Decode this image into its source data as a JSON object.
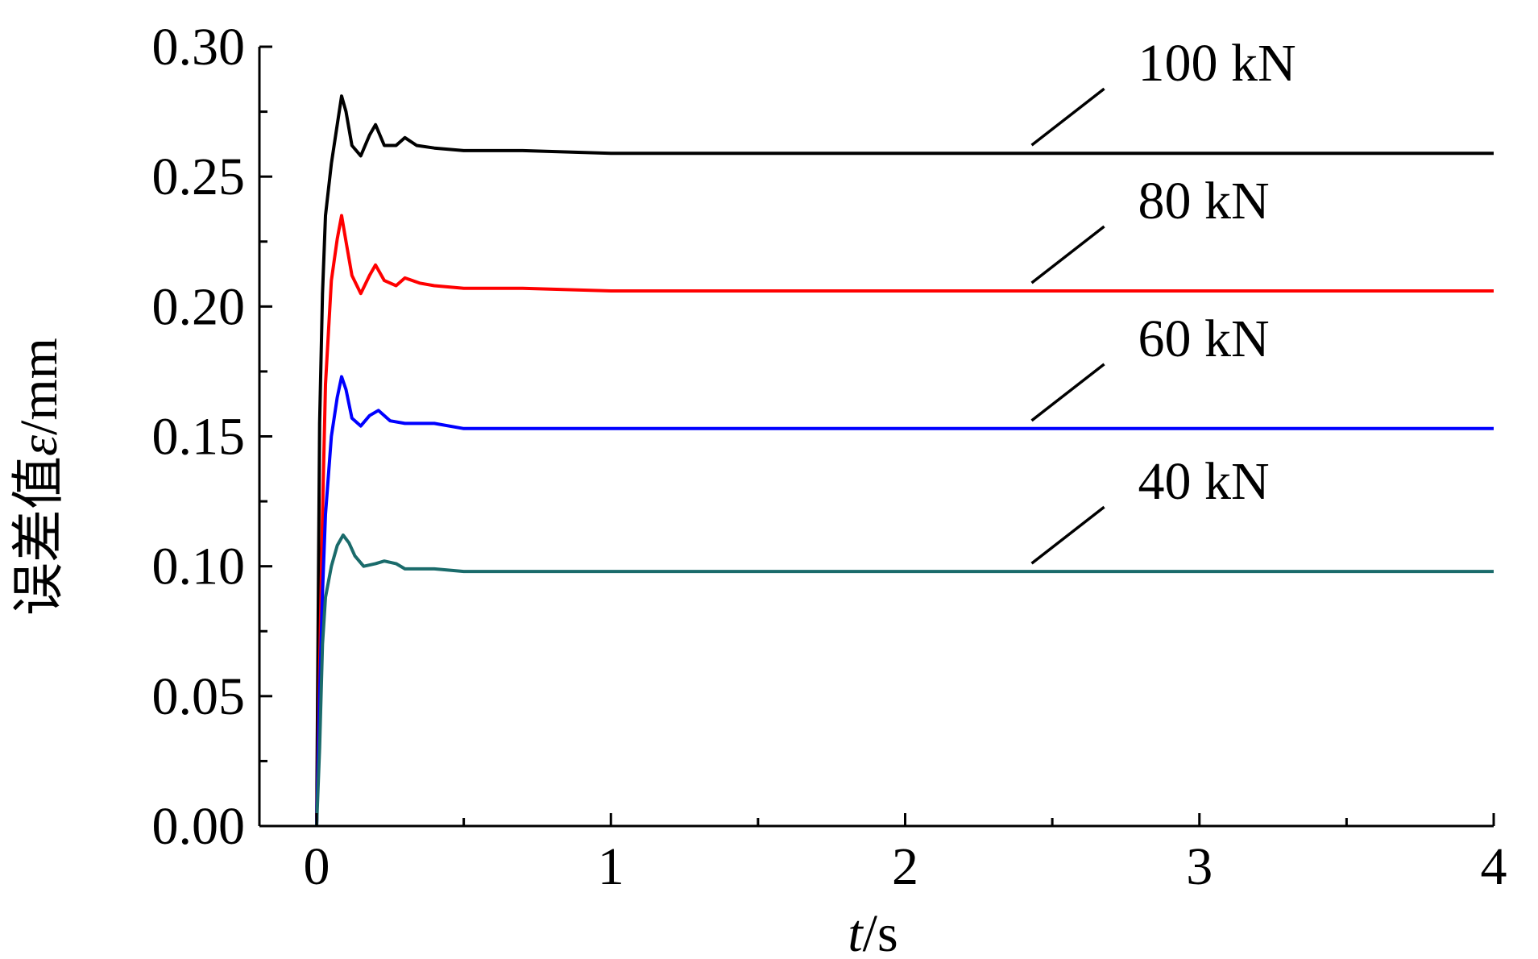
{
  "chart_data": {
    "type": "line",
    "xlabel_italic": "t",
    "xlabel_unit": "/s",
    "ylabel_text": "误差值",
    "ylabel_italic": "ε",
    "ylabel_unit": "/mm",
    "xlim": [
      0,
      4
    ],
    "ylim": [
      0,
      0.3
    ],
    "xticks": [
      "0",
      "1",
      "2",
      "3",
      "4"
    ],
    "yticks": [
      "0.00",
      "0.05",
      "0.10",
      "0.15",
      "0.20",
      "0.25",
      "0.30"
    ],
    "grid": false,
    "series": [
      {
        "name": "100 kN",
        "color": "#000000",
        "x": [
          0,
          0.01,
          0.02,
          0.03,
          0.05,
          0.07,
          0.085,
          0.1,
          0.12,
          0.15,
          0.18,
          0.2,
          0.23,
          0.27,
          0.3,
          0.34,
          0.4,
          0.5,
          0.7,
          1.0,
          2.0,
          3.0,
          4.0
        ],
        "y": [
          0.0,
          0.155,
          0.205,
          0.235,
          0.255,
          0.27,
          0.281,
          0.275,
          0.262,
          0.258,
          0.266,
          0.27,
          0.262,
          0.262,
          0.265,
          0.262,
          0.261,
          0.26,
          0.26,
          0.259,
          0.259,
          0.259,
          0.259
        ]
      },
      {
        "name": "80 kN",
        "color": "#ff0000",
        "x": [
          0,
          0.01,
          0.02,
          0.03,
          0.05,
          0.07,
          0.085,
          0.1,
          0.12,
          0.15,
          0.18,
          0.2,
          0.23,
          0.27,
          0.3,
          0.35,
          0.4,
          0.5,
          0.7,
          1.0,
          2.0,
          3.0,
          4.0
        ],
        "y": [
          0.0,
          0.06,
          0.12,
          0.17,
          0.21,
          0.226,
          0.235,
          0.225,
          0.212,
          0.205,
          0.212,
          0.216,
          0.21,
          0.208,
          0.211,
          0.209,
          0.208,
          0.207,
          0.207,
          0.206,
          0.206,
          0.206,
          0.206
        ]
      },
      {
        "name": "60 kN",
        "color": "#0000ff",
        "x": [
          0,
          0.01,
          0.02,
          0.03,
          0.05,
          0.07,
          0.085,
          0.1,
          0.12,
          0.15,
          0.18,
          0.21,
          0.25,
          0.3,
          0.4,
          0.5,
          0.7,
          1.0,
          2.0,
          3.0,
          4.0
        ],
        "y": [
          0.0,
          0.05,
          0.09,
          0.12,
          0.15,
          0.165,
          0.173,
          0.168,
          0.157,
          0.154,
          0.158,
          0.16,
          0.156,
          0.155,
          0.155,
          0.153,
          0.153,
          0.153,
          0.153,
          0.153,
          0.153
        ]
      },
      {
        "name": "40 kN",
        "color": "#1a6b6b",
        "x": [
          0,
          0.01,
          0.02,
          0.03,
          0.05,
          0.07,
          0.09,
          0.11,
          0.13,
          0.16,
          0.2,
          0.23,
          0.27,
          0.3,
          0.4,
          0.5,
          0.7,
          1.0,
          2.0,
          3.0,
          4.0
        ],
        "y": [
          0.0,
          0.03,
          0.07,
          0.088,
          0.1,
          0.108,
          0.112,
          0.109,
          0.104,
          0.1,
          0.101,
          0.102,
          0.101,
          0.099,
          0.099,
          0.098,
          0.098,
          0.098,
          0.098,
          0.098,
          0.098
        ]
      }
    ]
  }
}
